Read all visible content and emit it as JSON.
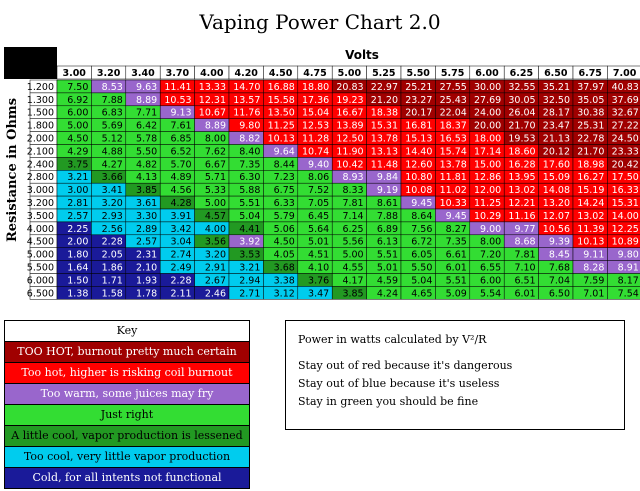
{
  "title": "Vaping Power Chart 2.0",
  "colors": {
    "darkred": "#a00000",
    "red": "#ff0000",
    "purple": "#9966cc",
    "green": "#33dd33",
    "darkgreen": "#229922",
    "cyan": "#00ccee",
    "navy": "#1a1a99",
    "header_bg": "#33cc33",
    "corner": "#000000"
  },
  "key": {
    "title": "Key",
    "items": [
      {
        "label": "TOO HOT, burnout pretty much certain",
        "color": "darkred",
        "text_color": "#ffffff"
      },
      {
        "label": "Too hot, higher is risking coil burnout",
        "color": "red",
        "text_color": "#ffffff"
      },
      {
        "label": "Too warm, some juices may fry",
        "color": "purple",
        "text_color": "#ffffff"
      },
      {
        "label": "Just right",
        "color": "green",
        "text_color": "#000000"
      },
      {
        "label": "A little cool, vapor production is lessened",
        "color": "darkgreen",
        "text_color": "#000000"
      },
      {
        "label": "Too cool, very little vapor production",
        "color": "cyan",
        "text_color": "#000000"
      },
      {
        "label": "Cold, for all intents not functional",
        "color": "navy",
        "text_color": "#ffffff"
      }
    ]
  },
  "notes": {
    "formula": "Power in watts  calculated by V²/R",
    "lines": [
      "Stay out of red because it's dangerous",
      "Stay out of blue because it's useless",
      "Stay in green you should be fine"
    ]
  },
  "chart_data": {
    "type": "heatmap",
    "title": "Vaping Power Chart 2.0",
    "xlabel": "Volts",
    "ylabel": "Resistance in Ohms",
    "x": [
      "3.00",
      "3.20",
      "3.40",
      "3.70",
      "4.00",
      "4.20",
      "4.50",
      "4.75",
      "5.00",
      "5.25",
      "5.50",
      "5.75",
      "6.00",
      "6.25",
      "6.50",
      "6.75",
      "7.00"
    ],
    "y": [
      "1.200",
      "1.300",
      "1.500",
      "1.800",
      "2.000",
      "2.100",
      "2.400",
      "2.800",
      "3.000",
      "3.200",
      "3.500",
      "4.000",
      "4.500",
      "5.000",
      "5.500",
      "6.000",
      "6.500"
    ],
    "values": [
      [
        "7.50",
        "8.53",
        "9.63",
        "11.41",
        "13.33",
        "14.70",
        "16.88",
        "18.80",
        "20.83",
        "22.97",
        "25.21",
        "27.55",
        "30.00",
        "32.55",
        "35.21",
        "37.97",
        "40.83"
      ],
      [
        "6.92",
        "7.88",
        "8.89",
        "10.53",
        "12.31",
        "13.57",
        "15.58",
        "17.36",
        "19.23",
        "21.20",
        "23.27",
        "25.43",
        "27.69",
        "30.05",
        "32.50",
        "35.05",
        "37.69"
      ],
      [
        "6.00",
        "6.83",
        "7.71",
        "9.13",
        "10.67",
        "11.76",
        "13.50",
        "15.04",
        "16.67",
        "18.38",
        "20.17",
        "22.04",
        "24.00",
        "26.04",
        "28.17",
        "30.38",
        "32.67"
      ],
      [
        "5.00",
        "5.69",
        "6.42",
        "7.61",
        "8.89",
        "9.80",
        "11.25",
        "12.53",
        "13.89",
        "15.31",
        "16.81",
        "18.37",
        "20.00",
        "21.70",
        "23.47",
        "25.31",
        "27.22"
      ],
      [
        "4.50",
        "5.12",
        "5.78",
        "6.85",
        "8.00",
        "8.82",
        "10.13",
        "11.28",
        "12.50",
        "13.78",
        "15.13",
        "16.53",
        "18.00",
        "19.53",
        "21.13",
        "22.78",
        "24.50"
      ],
      [
        "4.29",
        "4.88",
        "5.50",
        "6.52",
        "7.62",
        "8.40",
        "9.64",
        "10.74",
        "11.90",
        "13.13",
        "14.40",
        "15.74",
        "17.14",
        "18.60",
        "20.12",
        "21.70",
        "23.33"
      ],
      [
        "3.75",
        "4.27",
        "4.82",
        "5.70",
        "6.67",
        "7.35",
        "8.44",
        "9.40",
        "10.42",
        "11.48",
        "12.60",
        "13.78",
        "15.00",
        "16.28",
        "17.60",
        "18.98",
        "20.42"
      ],
      [
        "3.21",
        "3.66",
        "4.13",
        "4.89",
        "5.71",
        "6.30",
        "7.23",
        "8.06",
        "8.93",
        "9.84",
        "10.80",
        "11.81",
        "12.86",
        "13.95",
        "15.09",
        "16.27",
        "17.50"
      ],
      [
        "3.00",
        "3.41",
        "3.85",
        "4.56",
        "5.33",
        "5.88",
        "6.75",
        "7.52",
        "8.33",
        "9.19",
        "10.08",
        "11.02",
        "12.00",
        "13.02",
        "14.08",
        "15.19",
        "16.33"
      ],
      [
        "2.81",
        "3.20",
        "3.61",
        "4.28",
        "5.00",
        "5.51",
        "6.33",
        "7.05",
        "7.81",
        "8.61",
        "9.45",
        "10.33",
        "11.25",
        "12.21",
        "13.20",
        "14.24",
        "15.31"
      ],
      [
        "2.57",
        "2.93",
        "3.30",
        "3.91",
        "4.57",
        "5.04",
        "5.79",
        "6.45",
        "7.14",
        "7.88",
        "8.64",
        "9.45",
        "10.29",
        "11.16",
        "12.07",
        "13.02",
        "14.00"
      ],
      [
        "2.25",
        "2.56",
        "2.89",
        "3.42",
        "4.00",
        "4.41",
        "5.06",
        "5.64",
        "6.25",
        "6.89",
        "7.56",
        "8.27",
        "9.00",
        "9.77",
        "10.56",
        "11.39",
        "12.25"
      ],
      [
        "2.00",
        "2.28",
        "2.57",
        "3.04",
        "3.56",
        "3.92",
        "4.50",
        "5.01",
        "5.56",
        "6.13",
        "6.72",
        "7.35",
        "8.00",
        "8.68",
        "9.39",
        "10.13",
        "10.89"
      ],
      [
        "1.80",
        "2.05",
        "2.31",
        "2.74",
        "3.20",
        "3.53",
        "4.05",
        "4.51",
        "5.00",
        "5.51",
        "6.05",
        "6.61",
        "7.20",
        "7.81",
        "8.45",
        "9.11",
        "9.80"
      ],
      [
        "1.64",
        "1.86",
        "2.10",
        "2.49",
        "2.91",
        "3.21",
        "3.68",
        "4.10",
        "4.55",
        "5.01",
        "5.50",
        "6.01",
        "6.55",
        "7.10",
        "7.68",
        "8.28",
        "8.91"
      ],
      [
        "1.50",
        "1.71",
        "1.93",
        "2.28",
        "2.67",
        "2.94",
        "3.38",
        "3.76",
        "4.17",
        "4.59",
        "5.04",
        "5.51",
        "6.00",
        "6.51",
        "7.04",
        "7.59",
        "8.17"
      ],
      [
        "1.38",
        "1.58",
        "1.78",
        "2.11",
        "2.46",
        "2.71",
        "3.12",
        "3.47",
        "3.85",
        "4.24",
        "4.65",
        "5.09",
        "5.54",
        "6.01",
        "6.50",
        "7.01",
        "7.54"
      ]
    ],
    "bands": [
      [
        "green",
        "purple",
        "purple",
        "red",
        "red",
        "red",
        "red",
        "red",
        "darkred",
        "darkred",
        "darkred",
        "darkred",
        "darkred",
        "darkred",
        "darkred",
        "darkred",
        "darkred"
      ],
      [
        "green",
        "green",
        "purple",
        "red",
        "red",
        "red",
        "red",
        "red",
        "red",
        "darkred",
        "darkred",
        "darkred",
        "darkred",
        "darkred",
        "darkred",
        "darkred",
        "darkred"
      ],
      [
        "green",
        "green",
        "green",
        "purple",
        "red",
        "red",
        "red",
        "red",
        "red",
        "red",
        "darkred",
        "darkred",
        "darkred",
        "darkred",
        "darkred",
        "darkred",
        "darkred"
      ],
      [
        "green",
        "green",
        "green",
        "green",
        "purple",
        "red",
        "red",
        "red",
        "red",
        "red",
        "red",
        "red",
        "darkred",
        "darkred",
        "darkred",
        "darkred",
        "darkred"
      ],
      [
        "green",
        "green",
        "green",
        "green",
        "green",
        "purple",
        "red",
        "red",
        "red",
        "red",
        "red",
        "red",
        "red",
        "darkred",
        "darkred",
        "darkred",
        "darkred"
      ],
      [
        "green",
        "green",
        "green",
        "green",
        "green",
        "green",
        "purple",
        "red",
        "red",
        "red",
        "red",
        "red",
        "red",
        "red",
        "darkred",
        "darkred",
        "darkred"
      ],
      [
        "darkgreen",
        "green",
        "green",
        "green",
        "green",
        "green",
        "green",
        "purple",
        "red",
        "red",
        "red",
        "red",
        "red",
        "red",
        "red",
        "red",
        "darkred"
      ],
      [
        "cyan",
        "darkgreen",
        "green",
        "green",
        "green",
        "green",
        "green",
        "green",
        "purple",
        "purple",
        "red",
        "red",
        "red",
        "red",
        "red",
        "red",
        "red"
      ],
      [
        "cyan",
        "cyan",
        "darkgreen",
        "green",
        "green",
        "green",
        "green",
        "green",
        "green",
        "purple",
        "red",
        "red",
        "red",
        "red",
        "red",
        "red",
        "red"
      ],
      [
        "cyan",
        "cyan",
        "cyan",
        "darkgreen",
        "green",
        "green",
        "green",
        "green",
        "green",
        "green",
        "purple",
        "red",
        "red",
        "red",
        "red",
        "red",
        "red"
      ],
      [
        "cyan",
        "cyan",
        "cyan",
        "cyan",
        "darkgreen",
        "green",
        "green",
        "green",
        "green",
        "green",
        "green",
        "purple",
        "red",
        "red",
        "red",
        "red",
        "red"
      ],
      [
        "navy",
        "cyan",
        "cyan",
        "cyan",
        "cyan",
        "darkgreen",
        "green",
        "green",
        "green",
        "green",
        "green",
        "green",
        "purple",
        "purple",
        "red",
        "red",
        "red"
      ],
      [
        "navy",
        "navy",
        "cyan",
        "cyan",
        "darkgreen",
        "purple",
        "green",
        "green",
        "green",
        "green",
        "green",
        "green",
        "green",
        "purple",
        "purple",
        "red",
        "red"
      ],
      [
        "navy",
        "navy",
        "navy",
        "cyan",
        "cyan",
        "darkgreen",
        "green",
        "green",
        "green",
        "green",
        "green",
        "green",
        "green",
        "green",
        "purple",
        "purple",
        "purple"
      ],
      [
        "navy",
        "navy",
        "navy",
        "cyan",
        "cyan",
        "cyan",
        "darkgreen",
        "green",
        "green",
        "green",
        "green",
        "green",
        "green",
        "green",
        "green",
        "purple",
        "purple"
      ],
      [
        "navy",
        "navy",
        "navy",
        "navy",
        "cyan",
        "cyan",
        "cyan",
        "darkgreen",
        "green",
        "green",
        "green",
        "green",
        "green",
        "green",
        "green",
        "green",
        "green"
      ],
      [
        "navy",
        "navy",
        "navy",
        "navy",
        "navy",
        "cyan",
        "cyan",
        "cyan",
        "darkgreen",
        "green",
        "green",
        "green",
        "green",
        "green",
        "green",
        "green",
        "green"
      ]
    ]
  }
}
